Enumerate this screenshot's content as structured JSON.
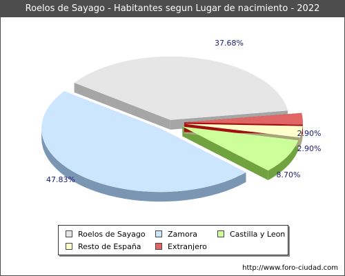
{
  "title": "Roelos de Sayago - Habitantes segun Lugar de nacimiento - 2022",
  "footer": "http://www.foro-ciudad.com",
  "chart_data": {
    "type": "pie",
    "slices": [
      {
        "label": "Roelos de Sayago",
        "value": 37.68,
        "display": "37.68%",
        "color": "#e6e6e6",
        "side": "#a6a6a6"
      },
      {
        "label": "Zamora",
        "value": 47.83,
        "display": "47.83%",
        "color": "#cde6ff",
        "side": "#7a96b3"
      },
      {
        "label": "Castilla y Leon",
        "value": 8.7,
        "display": "8.70%",
        "color": "#ccff99",
        "side": "#70a340"
      },
      {
        "label": "Resto de España",
        "value": 2.9,
        "display": "2.90%",
        "color": "#ffffcc",
        "side": "#a6a67a"
      },
      {
        "label": "Extranjero",
        "value": 2.9,
        "display": "2.90%",
        "color": "#e06666",
        "side": "#a01010"
      }
    ]
  }
}
